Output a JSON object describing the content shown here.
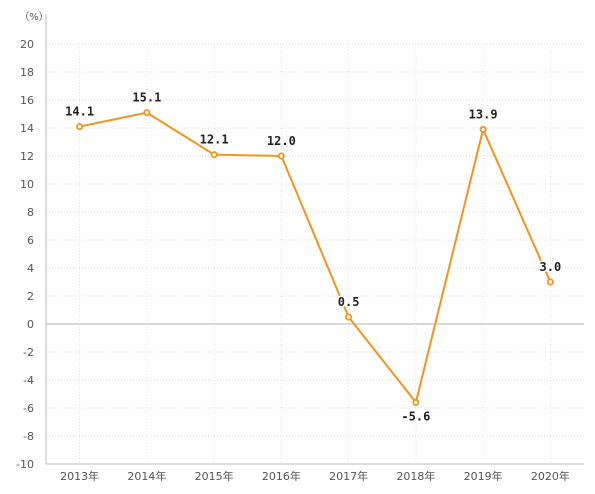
{
  "chart_data": {
    "type": "line",
    "unit_label": "（%）",
    "categories": [
      "2013年",
      "2014年",
      "2015年",
      "2016年",
      "2017年",
      "2018年",
      "2019年",
      "2020年"
    ],
    "series": [
      {
        "values": [
          14.1,
          15.1,
          12.1,
          12.0,
          0.5,
          -5.6,
          13.9,
          3.0
        ],
        "color": "#f0951e"
      }
    ],
    "data_labels": [
      "14.1",
      "15.1",
      "12.1",
      "12.0",
      "0.5",
      "-5.6",
      "13.9",
      "3.0"
    ],
    "ylim": [
      -10,
      20
    ],
    "yticks": [
      -10,
      -8,
      -6,
      -4,
      -2,
      0,
      2,
      4,
      6,
      8,
      10,
      12,
      14,
      16,
      18,
      20
    ],
    "grid": true,
    "legend": "none"
  }
}
